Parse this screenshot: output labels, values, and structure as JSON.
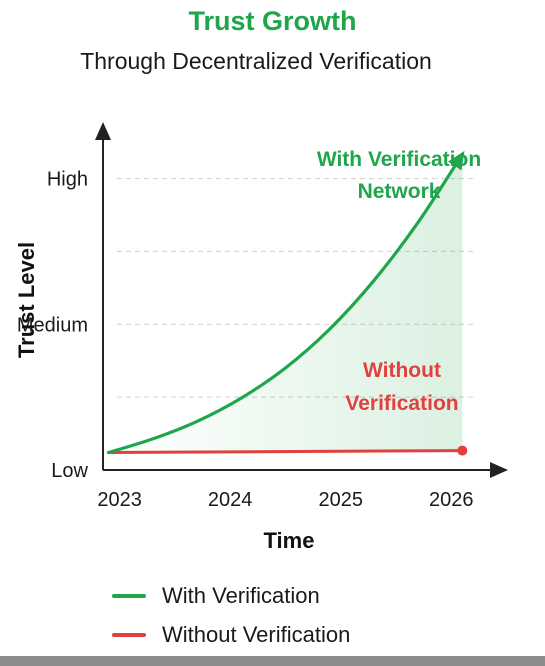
{
  "header": {
    "title": "Trust Growth",
    "subtitle": "Through Decentralized Verification"
  },
  "chart_data": {
    "type": "line",
    "title": "Trust Growth",
    "subtitle": "Through Decentralized Verification",
    "xlabel": "Time",
    "ylabel": "Trust Level",
    "x_ticks": [
      "2023",
      "2024",
      "2025",
      "2026"
    ],
    "y_ticks": [
      "Low",
      "Medium",
      "High"
    ],
    "xlim": [
      2022.85,
      2026.35
    ],
    "ylim": [
      0,
      3.5
    ],
    "grid": "dashed horizontal",
    "series": [
      {
        "name": "With Verification",
        "color": "#1fa64a",
        "line": "curve",
        "marker": "arrow-end",
        "x": [
          2022.9,
          2023.3,
          2023.7,
          2024.1,
          2024.5,
          2024.9,
          2025.3,
          2025.7,
          2026.1
        ],
        "y": [
          0.18,
          0.32,
          0.5,
          0.74,
          1.05,
          1.45,
          1.95,
          2.55,
          3.25
        ]
      },
      {
        "name": "Without Verification",
        "color": "#e0413e",
        "line": "flat",
        "marker": "dot-end",
        "x": [
          2022.9,
          2026.1
        ],
        "y": [
          0.18,
          0.2
        ]
      }
    ],
    "annotations": [
      {
        "text_lines": [
          "With Verification",
          "Network"
        ],
        "color": "#1fa64a"
      },
      {
        "text_lines": [
          "Without",
          "Verification"
        ],
        "color": "#e0413e"
      }
    ],
    "legend": {
      "position": "bottom-left",
      "items": [
        {
          "label": "With Verification",
          "color": "#1fa64a"
        },
        {
          "label": "Without Verification",
          "color": "#e0413e"
        }
      ]
    }
  }
}
